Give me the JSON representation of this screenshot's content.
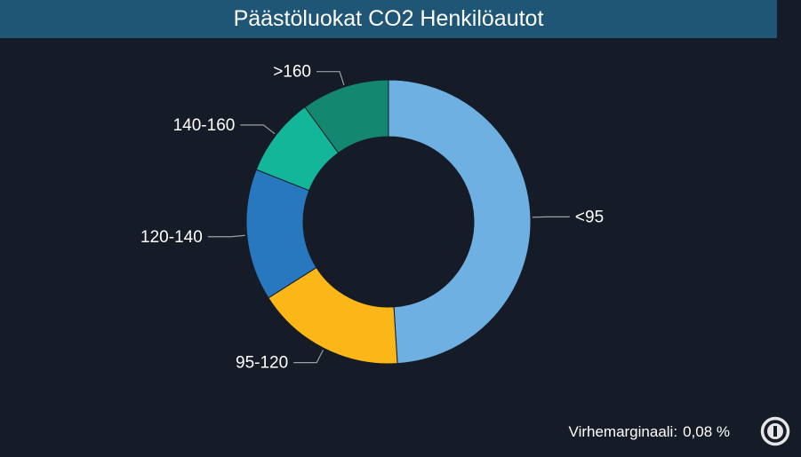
{
  "chart_data": {
    "type": "pie",
    "title": "Päästöluokat CO2 Henkilöautot",
    "categories": [
      "<95",
      "95-120",
      "120-140",
      "140-160",
      ">160"
    ],
    "values": [
      49,
      17,
      15,
      9,
      10
    ],
    "colors": [
      "#6fb0e2",
      "#fbb617",
      "#2878c0",
      "#14b69a",
      "#13876f"
    ],
    "inner_radius_ratio": 0.6
  },
  "footer": {
    "label": "Virhemarginaali:",
    "value": "0,08 %"
  },
  "info_icon": "info-icon"
}
